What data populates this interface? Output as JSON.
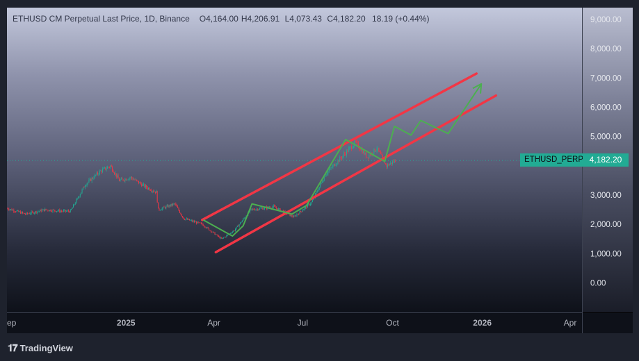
{
  "legend": {
    "symbol": "ETHUSD CM Perpetual Last Price, 1D, Binance",
    "open_key": "O",
    "open": "4,164.00",
    "high_key": "H",
    "high": "4,206.91",
    "low_key": "L",
    "low": "4,073.43",
    "close_key": "C",
    "close": "4,182.20",
    "change": "18.19 (+0.44%)"
  },
  "price_tag": {
    "symbol": "ETHUSD_PERP",
    "last_price": "4,182.20"
  },
  "branding": {
    "logo_text": "TradingView",
    "logo_icon": "tradingview-logo-icon"
  },
  "colors": {
    "up": "#22ab94",
    "down": "#f23645",
    "channel": "#f23645",
    "projection": "#4caf50"
  },
  "chart_data": {
    "type": "candlestick",
    "title": "ETHUSD CM Perpetual Last Price, 1D, Binance",
    "ylim": [
      -1000,
      9500
    ],
    "y_ticks": [
      "9,000.00",
      "8,000.00",
      "7,000.00",
      "6,000.00",
      "5,000.00",
      "3,000.00",
      "2,000.00",
      "1,000.00",
      "0.00"
    ],
    "y_tick_values": [
      9000,
      8000,
      7000,
      6000,
      5000,
      3000,
      2000,
      1000,
      0
    ],
    "x_ticks": [
      {
        "label": "ep",
        "date": "2024-09-01"
      },
      {
        "label": "2025",
        "date": "2025-01-01"
      },
      {
        "label": "Apr",
        "date": "2025-04-01"
      },
      {
        "label": "Jul",
        "date": "2025-07-01"
      },
      {
        "label": "Oct",
        "date": "2025-10-01"
      },
      {
        "label": "2026",
        "date": "2026-01-01"
      },
      {
        "label": "Apr",
        "date": "2026-04-01"
      }
    ],
    "price_anchors": [
      {
        "date": "2024-09-01",
        "price": 2550
      },
      {
        "date": "2024-09-20",
        "price": 2350
      },
      {
        "date": "2024-10-10",
        "price": 2500
      },
      {
        "date": "2024-10-28",
        "price": 2450
      },
      {
        "date": "2024-11-05",
        "price": 2450
      },
      {
        "date": "2024-11-20",
        "price": 3350
      },
      {
        "date": "2024-12-05",
        "price": 3800
      },
      {
        "date": "2024-12-16",
        "price": 4000
      },
      {
        "date": "2024-12-25",
        "price": 3500
      },
      {
        "date": "2025-01-06",
        "price": 3600
      },
      {
        "date": "2025-01-20",
        "price": 3300
      },
      {
        "date": "2025-02-01",
        "price": 3100
      },
      {
        "date": "2025-02-03",
        "price": 2500
      },
      {
        "date": "2025-02-20",
        "price": 2700
      },
      {
        "date": "2025-03-01",
        "price": 2200
      },
      {
        "date": "2025-03-20",
        "price": 2000
      },
      {
        "date": "2025-04-09",
        "price": 1500
      },
      {
        "date": "2025-04-22",
        "price": 1800
      },
      {
        "date": "2025-05-09",
        "price": 2500
      },
      {
        "date": "2025-06-01",
        "price": 2600
      },
      {
        "date": "2025-06-22",
        "price": 2250
      },
      {
        "date": "2025-07-10",
        "price": 2750
      },
      {
        "date": "2025-07-25",
        "price": 3750
      },
      {
        "date": "2025-08-10",
        "price": 4300
      },
      {
        "date": "2025-08-24",
        "price": 4800
      },
      {
        "date": "2025-09-05",
        "price": 4300
      },
      {
        "date": "2025-09-15",
        "price": 4600
      },
      {
        "date": "2025-09-25",
        "price": 4000
      },
      {
        "date": "2025-10-04",
        "price": 4182
      }
    ],
    "last_price": 4182.2,
    "drawings": {
      "channel_upper": [
        {
          "date": "2025-03-20",
          "price": 2150
        },
        {
          "date": "2025-12-26",
          "price": 7150
        }
      ],
      "channel_lower": [
        {
          "date": "2025-04-03",
          "price": 1050
        },
        {
          "date": "2026-01-15",
          "price": 6400
        }
      ],
      "projection_path": [
        {
          "date": "2025-03-21",
          "price": 2150
        },
        {
          "date": "2025-04-20",
          "price": 1600
        },
        {
          "date": "2025-05-01",
          "price": 1950
        },
        {
          "date": "2025-05-10",
          "price": 2700
        },
        {
          "date": "2025-06-20",
          "price": 2350
        },
        {
          "date": "2025-07-05",
          "price": 2650
        },
        {
          "date": "2025-08-14",
          "price": 4900
        },
        {
          "date": "2025-09-23",
          "price": 4150
        },
        {
          "date": "2025-10-03",
          "price": 5350
        },
        {
          "date": "2025-10-20",
          "price": 5050
        },
        {
          "date": "2025-10-30",
          "price": 5550
        },
        {
          "date": "2025-11-27",
          "price": 5100
        },
        {
          "date": "2025-12-31",
          "price": 6800
        }
      ]
    }
  }
}
